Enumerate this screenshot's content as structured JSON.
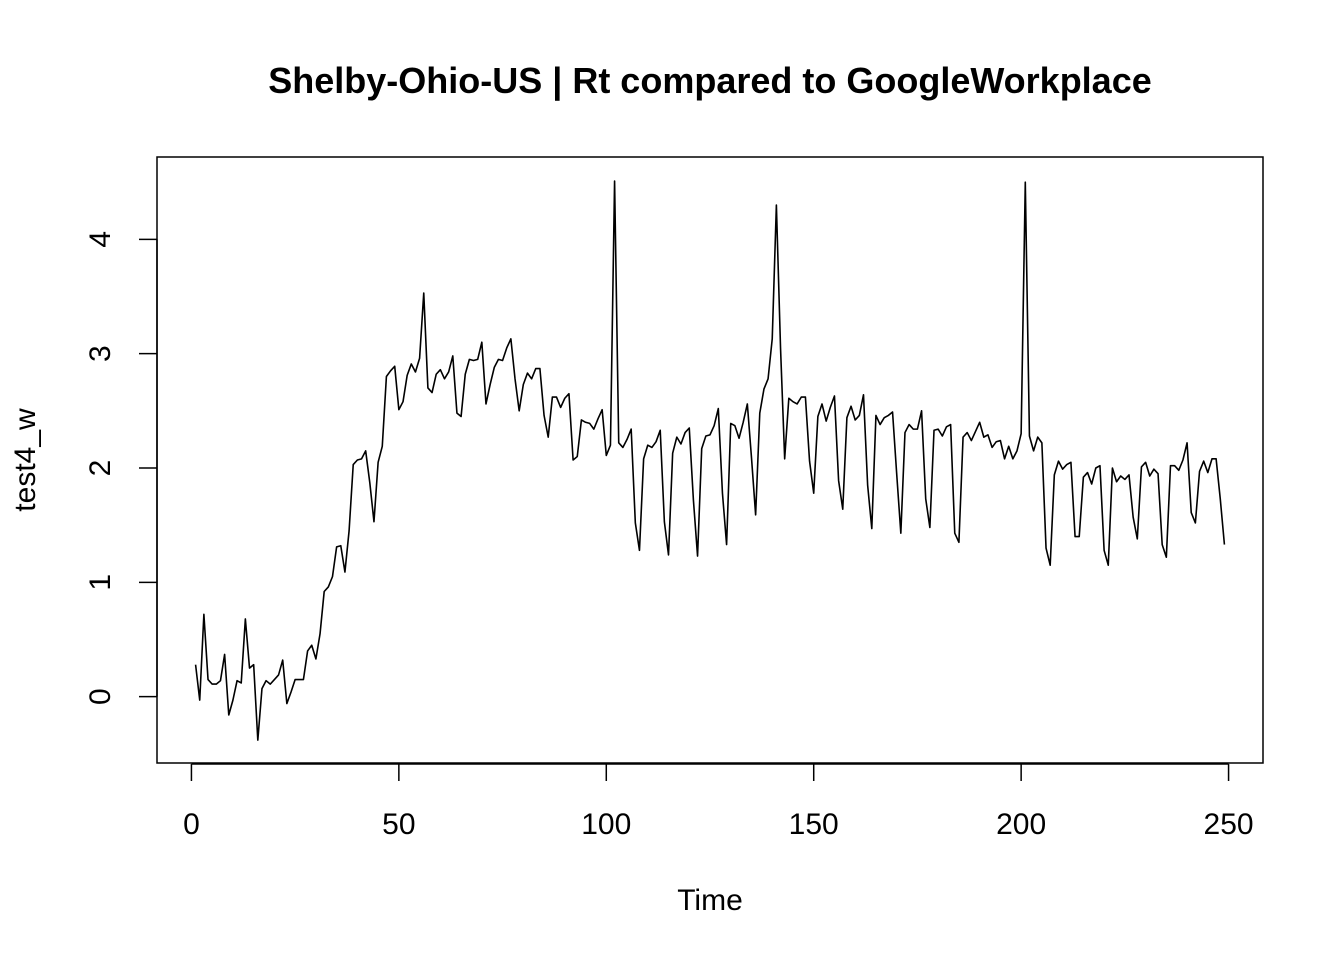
{
  "chart_data": {
    "type": "line",
    "title": "Shelby-Ohio-US | Rt compared to GoogleWorkplace",
    "xlabel": "Time",
    "ylabel": "test4_w",
    "xlim": [
      -8.3,
      258.3
    ],
    "ylim": [
      -0.58,
      4.72
    ],
    "x_ticks": [
      0,
      50,
      100,
      150,
      200,
      250
    ],
    "y_ticks": [
      0,
      1,
      2,
      3,
      4
    ],
    "grid": false,
    "legend": "none",
    "line_color": "#000000",
    "series": [
      {
        "x_start": 1,
        "values": [
          0.28,
          -0.03,
          0.72,
          0.15,
          0.11,
          0.11,
          0.14,
          0.37,
          -0.16,
          -0.03,
          0.14,
          0.12,
          0.68,
          0.25,
          0.28,
          -0.38,
          0.07,
          0.14,
          0.11,
          0.15,
          0.19,
          0.32,
          -0.06,
          0.04,
          0.15,
          0.15,
          0.15,
          0.4,
          0.45,
          0.33,
          0.55,
          0.92,
          0.96,
          1.05,
          1.31,
          1.32,
          1.09,
          1.45,
          2.03,
          2.07,
          2.08,
          2.15,
          1.87,
          1.53,
          2.05,
          2.19,
          2.8,
          2.85,
          2.89,
          2.51,
          2.58,
          2.81,
          2.91,
          2.84,
          2.96,
          3.53,
          2.7,
          2.66,
          2.82,
          2.86,
          2.78,
          2.84,
          2.98,
          2.48,
          2.45,
          2.82,
          2.95,
          2.94,
          2.95,
          3.1,
          2.56,
          2.73,
          2.88,
          2.95,
          2.94,
          3.05,
          3.13,
          2.78,
          2.5,
          2.73,
          2.83,
          2.78,
          2.87,
          2.87,
          2.46,
          2.27,
          2.62,
          2.62,
          2.53,
          2.61,
          2.65,
          2.07,
          2.1,
          2.42,
          2.4,
          2.39,
          2.34,
          2.43,
          2.51,
          2.11,
          2.2,
          4.51,
          2.22,
          2.18,
          2.25,
          2.34,
          1.52,
          1.28,
          2.08,
          2.2,
          2.18,
          2.23,
          2.33,
          1.53,
          1.24,
          2.13,
          2.27,
          2.21,
          2.31,
          2.35,
          1.72,
          1.23,
          2.17,
          2.28,
          2.29,
          2.37,
          2.52,
          1.78,
          1.33,
          2.39,
          2.37,
          2.26,
          2.4,
          2.56,
          2.09,
          1.59,
          2.48,
          2.69,
          2.78,
          3.13,
          4.3,
          3.05,
          2.08,
          2.61,
          2.58,
          2.56,
          2.62,
          2.62,
          2.06,
          1.78,
          2.45,
          2.56,
          2.41,
          2.53,
          2.63,
          1.89,
          1.64,
          2.44,
          2.54,
          2.42,
          2.46,
          2.64,
          1.85,
          1.47,
          2.46,
          2.38,
          2.44,
          2.46,
          2.49,
          1.95,
          1.43,
          2.31,
          2.38,
          2.34,
          2.34,
          2.5,
          1.73,
          1.48,
          2.33,
          2.34,
          2.28,
          2.36,
          2.38,
          1.43,
          1.35,
          2.27,
          2.31,
          2.24,
          2.32,
          2.4,
          2.27,
          2.29,
          2.18,
          2.23,
          2.24,
          2.08,
          2.19,
          2.08,
          2.15,
          2.3,
          4.5,
          2.28,
          2.15,
          2.27,
          2.22,
          1.3,
          1.15,
          1.94,
          2.06,
          1.99,
          2.03,
          2.05,
          1.4,
          1.4,
          1.92,
          1.96,
          1.86,
          2.0,
          2.02,
          1.28,
          1.15,
          2.0,
          1.88,
          1.93,
          1.9,
          1.94,
          1.57,
          1.38,
          2.01,
          2.05,
          1.93,
          1.99,
          1.95,
          1.33,
          1.22,
          2.02,
          2.02,
          1.98,
          2.07,
          2.22,
          1.61,
          1.52,
          1.97,
          2.06,
          1.96,
          2.08,
          2.08,
          1.73,
          1.33
        ]
      }
    ]
  }
}
